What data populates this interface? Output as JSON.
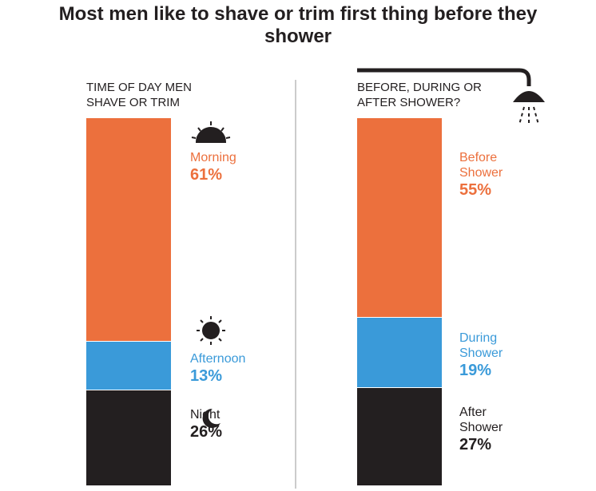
{
  "title": "Most men like to shave or trim first thing before they shower",
  "chart_data": [
    {
      "type": "stacked-bar",
      "subtitle": "TIME OF DAY MEN SHAVE OR TRIM",
      "series": [
        {
          "name": "Morning",
          "color": "#ec703d",
          "values": [
            61
          ],
          "value_labels": [
            "61%"
          ]
        },
        {
          "name": "Afternoon",
          "color": "#3a9ad9",
          "values": [
            13
          ],
          "value_labels": [
            "13%"
          ]
        },
        {
          "name": "Night",
          "color": "#231f20",
          "values": [
            26
          ],
          "value_labels": [
            "26%"
          ]
        }
      ]
    },
    {
      "type": "stacked-bar",
      "subtitle": "BEFORE, DURING OR AFTER SHOWER?",
      "series": [
        {
          "name": "Before Shower",
          "color": "#ec703d",
          "values": [
            55
          ],
          "value_labels": [
            "55%"
          ]
        },
        {
          "name": "During Shower",
          "color": "#3a9ad9",
          "values": [
            19
          ],
          "value_labels": [
            "19%"
          ]
        },
        {
          "name": "After Shower",
          "color": "#231f20",
          "values": [
            27
          ],
          "value_labels": [
            "27%"
          ]
        }
      ]
    }
  ]
}
